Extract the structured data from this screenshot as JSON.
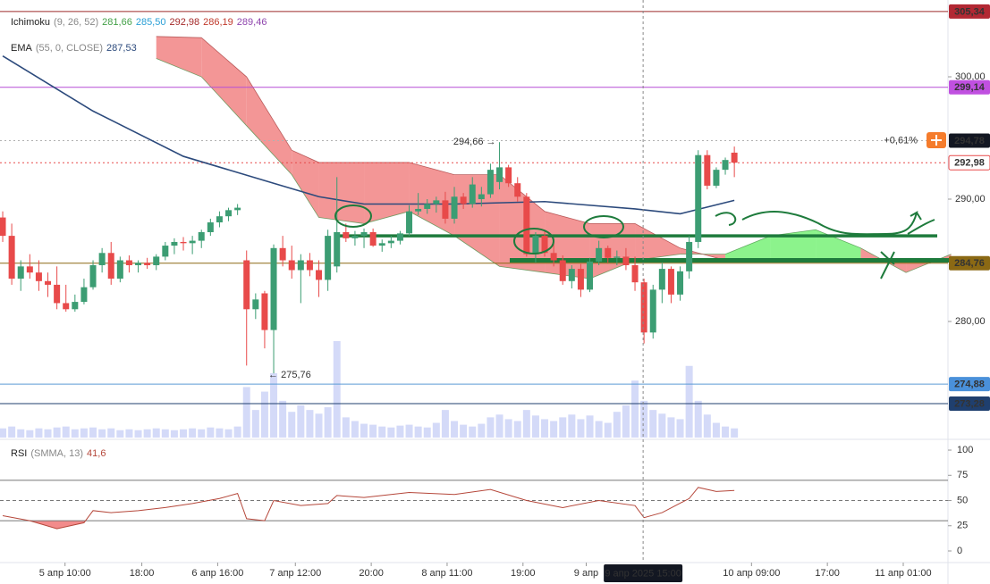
{
  "chart_data": {
    "type": "candlestick",
    "legend": {
      "ichimoku": {
        "name": "Ichimoku",
        "params": "(9, 26, 52)",
        "values": [
          {
            "label": "281,66",
            "color": "#43a047"
          },
          {
            "label": "285,50",
            "color": "#2a9fd6"
          },
          {
            "label": "292,98",
            "color": "#a52a2a"
          },
          {
            "label": "286,19",
            "color": "#c0392b"
          },
          {
            "label": "289,46",
            "color": "#8e44ad"
          }
        ]
      },
      "ema": {
        "name": "EMA",
        "params": "(55, 0, CLOSE)",
        "value": "287,53",
        "color": "#2c4a7c"
      },
      "rsi": {
        "name": "RSI",
        "params": "(SMMA, 13)",
        "value": "41,6",
        "color": "#b5473a"
      }
    },
    "up_color": "#3c9d73",
    "down_color": "#e84a4a",
    "xlim": [
      -0.3,
      104.65
    ],
    "ylim": [
      270.51,
      306.28
    ],
    "yticks": [
      {
        "value": 300,
        "label": "300,00"
      },
      {
        "value": 290,
        "label": "290,00"
      },
      {
        "value": 280,
        "label": "280,00"
      }
    ],
    "xticks": [
      {
        "value": 6.9,
        "label": "5 апр 10:00"
      },
      {
        "value": 15.4,
        "label": "18:00"
      },
      {
        "value": 23.8,
        "label": "6 апр 16:00"
      },
      {
        "value": 32.4,
        "label": "7 апр 12:00"
      },
      {
        "value": 40.8,
        "label": "20:00"
      },
      {
        "value": 49.2,
        "label": "8 апр 11:00"
      },
      {
        "value": 57.6,
        "label": "19:00"
      },
      {
        "value": 64.6,
        "label": "9 апр"
      },
      {
        "value": 82.9,
        "label": "10 апр 09:00"
      },
      {
        "value": 91.3,
        "label": "17:00"
      },
      {
        "value": 99.7,
        "label": "11 апр 01:00"
      }
    ],
    "crosshair": {
      "value": 70.9,
      "label": "9 апр 2025 15:00"
    },
    "candles": [
      [
        288.5,
        289,
        286.5,
        287
      ],
      [
        287,
        288,
        283,
        283.5
      ],
      [
        283.5,
        285,
        282.5,
        284.5
      ],
      [
        284.5,
        285.5,
        283.5,
        284
      ],
      [
        284,
        285,
        282.5,
        283.3
      ],
      [
        283.3,
        284,
        282,
        283
      ],
      [
        283,
        284.5,
        281,
        281.5
      ],
      [
        281.5,
        283,
        280.8,
        281
      ],
      [
        281,
        282.2,
        280.8,
        281.6
      ],
      [
        281.6,
        283.5,
        281.4,
        282.8
      ],
      [
        282.8,
        285,
        282.6,
        284.6
      ],
      [
        284.6,
        286,
        284,
        285.6
      ],
      [
        285.6,
        286.5,
        283,
        283.5
      ],
      [
        283.5,
        285.3,
        283.2,
        285
      ],
      [
        285,
        285.4,
        284,
        284.6
      ],
      [
        284.6,
        285,
        284,
        284.8
      ],
      [
        284.8,
        285.2,
        284.3,
        284.6
      ],
      [
        284.6,
        285.5,
        284.2,
        285.3
      ],
      [
        285.3,
        286.5,
        285,
        286.2
      ],
      [
        286.2,
        286.8,
        285.5,
        286.5
      ],
      [
        286.5,
        286.9,
        285.8,
        286.4
      ],
      [
        286.4,
        287,
        285.5,
        286.6
      ],
      [
        286.6,
        287.5,
        286,
        287.3
      ],
      [
        287.3,
        288.4,
        287,
        288.1
      ],
      [
        288.1,
        289,
        287.7,
        288.6
      ],
      [
        288.6,
        289.3,
        288.2,
        289.1
      ],
      [
        289.1,
        289.6,
        288.7,
        289.3
      ],
      [
        285,
        285.8,
        276.4,
        281
      ],
      [
        281,
        282.3,
        280.2,
        281.8
      ],
      [
        282.3,
        282.5,
        277.8,
        279.3
      ],
      [
        279.3,
        286.3,
        275.76,
        286
      ],
      [
        286,
        287,
        284.5,
        285
      ],
      [
        285,
        286.2,
        283.5,
        284.2
      ],
      [
        284.2,
        285.5,
        281.5,
        285
      ],
      [
        285,
        285.6,
        283.7,
        284.2
      ],
      [
        284.2,
        285,
        282,
        283.4
      ],
      [
        283.4,
        287.5,
        282.5,
        287
      ],
      [
        284.5,
        291.8,
        284,
        287.3
      ],
      [
        287.3,
        288,
        286.5,
        286.8
      ],
      [
        286.8,
        287.4,
        286.2,
        287
      ],
      [
        287,
        287.6,
        286,
        287.3
      ],
      [
        287.3,
        287.6,
        286.1,
        286.2
      ],
      [
        286.2,
        286.7,
        285.7,
        286.4
      ],
      [
        286.4,
        287,
        286,
        286.6
      ],
      [
        286.6,
        287.4,
        286.3,
        287.2
      ],
      [
        287.2,
        289.5,
        287,
        289
      ],
      [
        289,
        290.5,
        288.7,
        289.2
      ],
      [
        289.2,
        290,
        288.8,
        289.6
      ],
      [
        289.6,
        290.2,
        288.9,
        289.9
      ],
      [
        289.9,
        290.6,
        288,
        288.4
      ],
      [
        288.4,
        291,
        288,
        290.2
      ],
      [
        290.2,
        290.5,
        289.2,
        289.6
      ],
      [
        289.6,
        291.8,
        289.3,
        291.2
      ],
      [
        290,
        291,
        289.4,
        290.4
      ],
      [
        290.4,
        292.9,
        290.1,
        292.4
      ],
      [
        291.4,
        294.66,
        290.8,
        292.6
      ],
      [
        292.6,
        292.8,
        291,
        291.3
      ],
      [
        291.3,
        291.8,
        289.8,
        290.2
      ],
      [
        290.2,
        290.5,
        285.3,
        285.5
      ],
      [
        285.5,
        287.3,
        284.8,
        287
      ],
      [
        287,
        287.4,
        285.3,
        285.6
      ],
      [
        285.6,
        286.5,
        284.5,
        285
      ],
      [
        285,
        285.4,
        283,
        283.3
      ],
      [
        283.3,
        284.6,
        282.7,
        284.3
      ],
      [
        284.3,
        284.7,
        282,
        282.6
      ],
      [
        282.6,
        285.2,
        282.4,
        284.9
      ],
      [
        284.9,
        286.6,
        284.6,
        286
      ],
      [
        286,
        286.2,
        284.8,
        285.2
      ],
      [
        285.2,
        285.8,
        284.6,
        285.3
      ],
      [
        285.3,
        286,
        284.2,
        284.6
      ],
      [
        284.6,
        285.3,
        282.5,
        283.2
      ],
      [
        283.2,
        283.5,
        278.2,
        279.1
      ],
      [
        279.1,
        283,
        278.6,
        282.6
      ],
      [
        282.6,
        284.8,
        281.5,
        284.3
      ],
      [
        284.3,
        284.5,
        281.5,
        282.2
      ],
      [
        282.2,
        284.5,
        281.7,
        284.1
      ],
      [
        284.1,
        287,
        283.5,
        286.5
      ],
      [
        286.5,
        294,
        286,
        293.6
      ],
      [
        293.6,
        294,
        290.8,
        291.1
      ],
      [
        291.1,
        292.6,
        290.9,
        292.4
      ],
      [
        292.4,
        293.4,
        292,
        293.2
      ],
      [
        293.8,
        294.3,
        291.8,
        292.98
      ]
    ],
    "volume": [
      10,
      12,
      9,
      8,
      10,
      9,
      11,
      12,
      9,
      10,
      11,
      9,
      10,
      8,
      9,
      8,
      9,
      10,
      9,
      8,
      9,
      10,
      9,
      11,
      10,
      9,
      12,
      55,
      30,
      50,
      70,
      40,
      28,
      35,
      30,
      26,
      33,
      105,
      22,
      18,
      15,
      14,
      12,
      11,
      13,
      14,
      12,
      11,
      16,
      30,
      18,
      14,
      12,
      15,
      22,
      25,
      20,
      18,
      30,
      24,
      20,
      18,
      22,
      25,
      20,
      24,
      18,
      16,
      28,
      35,
      62,
      40,
      30,
      26,
      22,
      20,
      78,
      40,
      25,
      16,
      12,
      10
    ],
    "high_note": {
      "value": 294.66,
      "index": 55,
      "label": "294,66 →"
    },
    "low_note": {
      "value": 275.76,
      "index": 30,
      "label": "← 275,76"
    },
    "ema": {
      "color": "#2c4a7c",
      "x": [
        0,
        10,
        20,
        30,
        35,
        40,
        50,
        60,
        70,
        75,
        81
      ],
      "values": [
        301.7,
        297.2,
        293.5,
        291.3,
        290.2,
        289.6,
        289.6,
        289.8,
        289.2,
        288.8,
        289.9
      ]
    },
    "cloud": {
      "x": [
        17,
        22,
        27,
        32,
        35,
        40,
        45,
        50,
        55,
        60,
        65,
        70,
        75,
        80,
        85,
        90,
        95,
        100,
        105
      ],
      "span_a": [
        301.5,
        300,
        296,
        292,
        288.5,
        288,
        289,
        287,
        284.5,
        284,
        283.5,
        285,
        285.5,
        285.5,
        287,
        287.5,
        286,
        284,
        285.5
      ],
      "span_b": [
        303.3,
        303.2,
        300,
        294,
        293,
        293,
        293,
        292,
        292,
        289,
        288,
        288,
        286,
        285,
        285,
        285,
        285,
        285,
        285
      ],
      "bull_color": "#7ff27f",
      "bear_color": "#f28b8b"
    },
    "levels": [
      {
        "value": 305.34,
        "label": "305,34",
        "color": "#9c2a2a",
        "tag": "#b22833"
      },
      {
        "value": 299.14,
        "label": "299,14",
        "color": "#b54fd6",
        "tag": "#c050e0"
      },
      {
        "value": 294.78,
        "label": "294,78",
        "color": "#b0b0b0",
        "tag": "#131722",
        "dash": true
      },
      {
        "value": 292.98,
        "label": "292,98",
        "color": "#e84a4a",
        "tag": "#ffffff",
        "dash": true
      },
      {
        "value": 284.76,
        "label": "284,76",
        "color": "#8b6914",
        "tag": "#8b6914"
      },
      {
        "value": 274.88,
        "label": "274,88",
        "color": "#5b9bd5",
        "tag": "#4a90d9"
      },
      {
        "value": 273.28,
        "label": "273,28",
        "color": "#1f3f6e",
        "tag": "#1f3f6e"
      }
    ],
    "change_label": "+0,61%",
    "drawn_lines": [
      {
        "value": 287.0,
        "color": "#1e7b3c"
      },
      {
        "value": 285.0,
        "color": "#1e7b3c"
      }
    ],
    "rsi": {
      "color": "#b5473a",
      "x": [
        0,
        3,
        6,
        9,
        10,
        12,
        15,
        18,
        21,
        24,
        26,
        27,
        29,
        30,
        33,
        36,
        37,
        40,
        45,
        50,
        54,
        58,
        62,
        66,
        70,
        71,
        73,
        76,
        77,
        79,
        81
      ],
      "values": [
        35,
        30,
        22,
        28,
        40,
        38,
        40,
        43,
        47,
        52,
        57,
        32,
        30,
        50,
        45,
        47,
        55,
        53,
        58,
        56,
        61,
        50,
        43,
        50,
        45,
        33,
        38,
        52,
        63,
        59,
        60
      ],
      "ylim": [
        -11.5,
        108
      ],
      "yticks": [
        100,
        75,
        50,
        25,
        0
      ],
      "bands": [
        70,
        30
      ],
      "mid": 50,
      "band_fill": "#f28b8b"
    }
  }
}
